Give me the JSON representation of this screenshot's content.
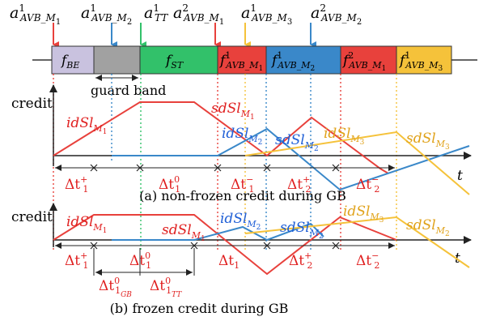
{
  "colors": {
    "red": "#e8413c",
    "blue": "#3a88c9",
    "green": "#32c16a",
    "yellow": "#f5c23a",
    "lavender": "#c9c2df",
    "gray": "#a1a1a1",
    "axis": "#222222",
    "label_red": "#e02020",
    "label_blue": "#1f5fd6",
    "label_yellow": "#e0a21a"
  },
  "timeline": {
    "arrows": [
      {
        "base": "a",
        "sup": "1",
        "sub": "AVB_M",
        "subsub": "1"
      },
      {
        "base": "a",
        "sup": "1",
        "sub": "AVB_M",
        "subsub": "2"
      },
      {
        "base": "a",
        "sup": "1",
        "sub": "TT",
        "subsub": ""
      },
      {
        "base": "a",
        "sup": "2",
        "sub": "AVB_M",
        "subsub": "1"
      },
      {
        "base": "a",
        "sup": "1",
        "sub": "AVB_M",
        "subsub": "3"
      },
      {
        "base": "a",
        "sup": "2",
        "sub": "AVB_M",
        "subsub": "2"
      }
    ],
    "blocks": [
      {
        "base": "f",
        "sup": "",
        "sub": "BE",
        "subsub": ""
      },
      {
        "base": "",
        "sup": "",
        "sub": "",
        "subsub": ""
      },
      {
        "base": "f",
        "sup": "",
        "sub": "ST",
        "subsub": ""
      },
      {
        "base": "f",
        "sup": "1",
        "sub": "AVB_M",
        "subsub": "1"
      },
      {
        "base": "f",
        "sup": "1",
        "sub": "AVB_M",
        "subsub": "2"
      },
      {
        "base": "f",
        "sup": "2",
        "sub": "AVB_M",
        "subsub": "1"
      },
      {
        "base": "f",
        "sup": "1",
        "sub": "AVB_M",
        "subsub": "3"
      }
    ],
    "guard_band_label": "guard band"
  },
  "panel_a": {
    "ylabel": "credit",
    "xlabel": "t",
    "caption": "(a) non-frozen credit during GB",
    "curve_labels": [
      {
        "base": "idSl",
        "sub": "M",
        "subsub": "1"
      },
      {
        "base": "sdSl",
        "sub": "M",
        "subsub": "1"
      },
      {
        "base": "idSl",
        "sub": "M",
        "subsub": "2"
      },
      {
        "base": "sdSl",
        "sub": "M",
        "subsub": "2"
      },
      {
        "base": "idSl",
        "sub": "M",
        "subsub": "3"
      },
      {
        "base": "sdSl",
        "sub": "M",
        "subsub": "3"
      }
    ],
    "intervals": [
      {
        "base": "Δt",
        "sub": "1",
        "sup": "+"
      },
      {
        "base": "Δt",
        "sub": "1",
        "sup": "0"
      },
      {
        "base": "Δt",
        "sub": "1",
        "sup": "−"
      },
      {
        "base": "Δt",
        "sub": "2",
        "sup": "+"
      },
      {
        "base": "Δt",
        "sub": "2",
        "sup": "−"
      }
    ]
  },
  "panel_b": {
    "ylabel": "credit",
    "xlabel": "t",
    "caption": "(b) frozen credit during GB",
    "curve_labels": [
      {
        "base": "idSl",
        "sub": "M",
        "subsub": "1"
      },
      {
        "base": "sdSl",
        "sub": "M",
        "subsub": "1"
      },
      {
        "base": "idSl",
        "sub": "M",
        "subsub": "2"
      },
      {
        "base": "sdSl",
        "sub": "M",
        "subsub": "2"
      },
      {
        "base": "idSl",
        "sub": "M",
        "subsub": "3"
      },
      {
        "base": "sdSl",
        "sub": "M",
        "subsub": "2"
      }
    ],
    "intervals": [
      {
        "base": "Δt",
        "sub": "1",
        "sup": "+"
      },
      {
        "base": "Δt",
        "sub": "1",
        "sup": "0"
      },
      {
        "base": "Δt",
        "sub": "1",
        "sup": ""
      },
      {
        "base": "Δt",
        "sub": "2",
        "sup": "+"
      },
      {
        "base": "Δt",
        "sub": "2",
        "sup": "−"
      }
    ],
    "sub_intervals": [
      {
        "base": "Δt",
        "sub": "1",
        "sup": "0",
        "subsub": "GB"
      },
      {
        "base": "Δt",
        "sub": "1",
        "sup": "0",
        "subsub": "TT"
      }
    ]
  }
}
